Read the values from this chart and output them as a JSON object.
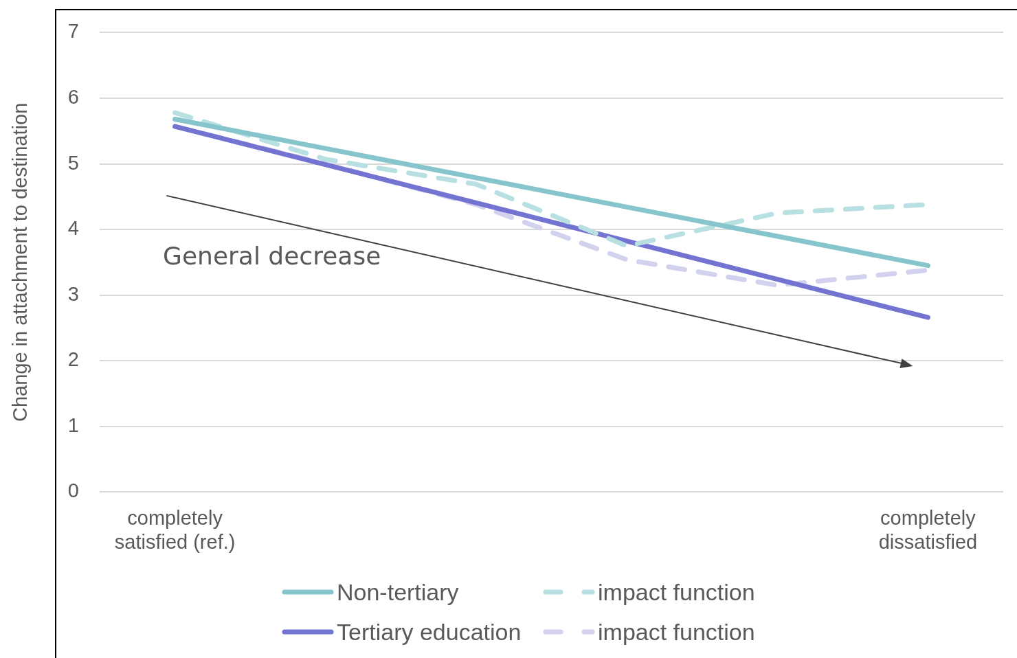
{
  "chart_data": {
    "type": "line",
    "ylabel": "Change in attachment to destination",
    "categories": [
      "completely satisfied (ref.)",
      null,
      null,
      null,
      null,
      "completely dissatisfied"
    ],
    "ylim": [
      0,
      7
    ],
    "yticks": [
      0,
      1,
      2,
      3,
      4,
      5,
      6,
      7
    ],
    "grid": "y",
    "legend": "bottom",
    "marker": "none",
    "series": [
      {
        "name": "Non-tertiary",
        "color": "#86c5cb",
        "line_style": "solid",
        "values": [
          5.68,
          null,
          null,
          null,
          null,
          3.45
        ]
      },
      {
        "name": "impact function",
        "color": "#b8e0e2",
        "line_style": "dashed",
        "values": [
          5.78,
          5.07,
          4.69,
          3.75,
          4.25,
          4.38
        ]
      },
      {
        "name": "Tertiary education",
        "color": "#7373d1",
        "line_style": "solid",
        "values": [
          5.57,
          null,
          null,
          null,
          null,
          2.66
        ]
      },
      {
        "name": "impact function",
        "color": "#d2d2ef",
        "line_style": "dashed",
        "values": [
          5.57,
          5.0,
          4.38,
          3.54,
          3.15,
          3.38
        ]
      }
    ],
    "annotations": [
      "General decrease"
    ]
  }
}
